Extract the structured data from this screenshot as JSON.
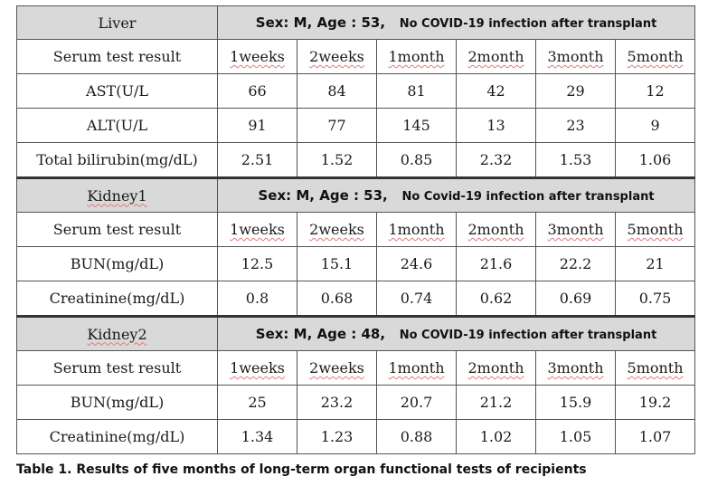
{
  "liver": {
    "organ": "Liver",
    "sex_age": "Sex: M, Age : 53,",
    "status": "No COVID-19 infection after transplant",
    "header_label": "Serum test result",
    "periods": [
      "1weeks",
      "2weeks",
      "1month",
      "2month",
      "3month",
      "5month"
    ],
    "rows": [
      {
        "label": "AST(U/L",
        "values": [
          "66",
          "84",
          "81",
          "42",
          "29",
          "12"
        ]
      },
      {
        "label": "ALT(U/L",
        "values": [
          "91",
          "77",
          "145",
          "13",
          "23",
          "9"
        ]
      },
      {
        "label": "Total bilirubin(mg/dL)",
        "values": [
          "2.51",
          "1.52",
          "0.85",
          "2.32",
          "1.53",
          "1.06"
        ]
      }
    ]
  },
  "kidney1": {
    "organ": "Kidney1",
    "sex_age": "Sex: M, Age : 53,",
    "status": "No Covid-19 infection after transplant",
    "header_label": "Serum test result",
    "periods": [
      "1weeks",
      "2weeks",
      "1month",
      "2month",
      "3month",
      "5month"
    ],
    "rows": [
      {
        "label": "BUN(mg/dL)",
        "values": [
          "12.5",
          "15.1",
          "24.6",
          "21.6",
          "22.2",
          "21"
        ]
      },
      {
        "label": "Creatinine(mg/dL)",
        "values": [
          "0.8",
          "0.68",
          "0.74",
          "0.62",
          "0.69",
          "0.75"
        ]
      }
    ]
  },
  "kidney2": {
    "organ": "Kidney2",
    "sex_age": "Sex: M, Age : 48,",
    "status": "No COVID-19 infection after transplant",
    "header_label": "Serum test result",
    "periods": [
      "1weeks",
      "2weeks",
      "1month",
      "2month",
      "3month",
      "5month"
    ],
    "rows": [
      {
        "label": "BUN(mg/dL)",
        "values": [
          "25",
          "23.2",
          "20.7",
          "21.2",
          "15.9",
          "19.2"
        ]
      },
      {
        "label": "Creatinine(mg/dL)",
        "values": [
          "1.34",
          "1.23",
          "0.88",
          "1.02",
          "1.05",
          "1.07"
        ]
      }
    ]
  },
  "caption": "Table 1. Results of five months of long-term organ functional tests of recipients"
}
